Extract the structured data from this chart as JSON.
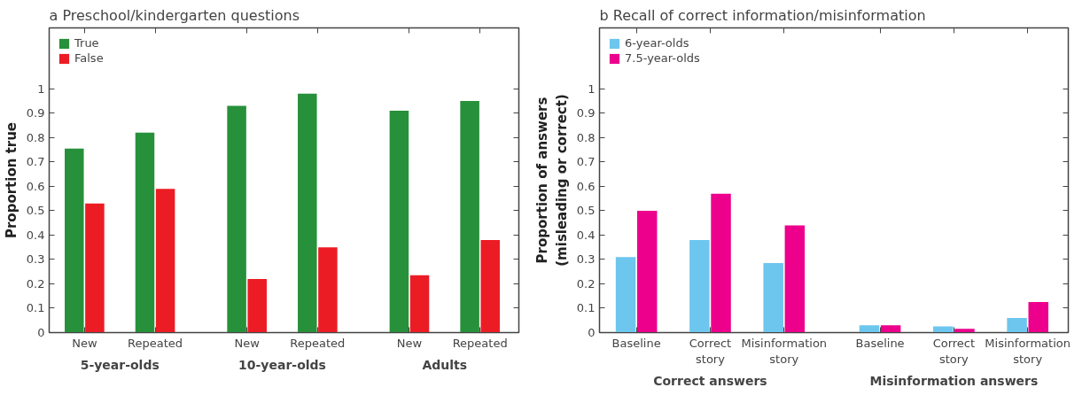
{
  "chart_data": [
    {
      "type": "bar",
      "title": "a Preschool/kindergarten questions",
      "ylabel": "Proportion true",
      "categories": [
        "New",
        "Repeated",
        "New",
        "Repeated",
        "New",
        "Repeated"
      ],
      "annotations": [
        "5-year-olds",
        "10-year-olds",
        "Adults"
      ],
      "series": [
        {
          "name": "True",
          "color": "#27903a",
          "values": [
            0.755,
            0.82,
            0.93,
            0.98,
            0.91,
            0.95
          ]
        },
        {
          "name": "False",
          "color": "#ec1c24",
          "values": [
            0.53,
            0.59,
            0.22,
            0.35,
            0.235,
            0.38
          ]
        }
      ],
      "ylim": [
        0,
        1.25
      ],
      "yticks": [
        0,
        0.1,
        0.2,
        0.3,
        0.4,
        0.5,
        0.6,
        0.7,
        0.8,
        0.9,
        1
      ],
      "legend": "top left"
    },
    {
      "type": "bar",
      "title": "b Recall of correct information/misinformation",
      "ylabel": "Proportion of answers\n(misleading or correct)",
      "categories": [
        "Baseline",
        "Correct story",
        "Misinformation story",
        "Baseline",
        "Correct story",
        "Misinformation story"
      ],
      "annotations": [
        "Correct answers",
        "Misinformation answers"
      ],
      "series": [
        {
          "name": "6-year-olds",
          "color": "#6dc6ee",
          "values": [
            0.31,
            0.38,
            0.285,
            0.03,
            0.025,
            0.06
          ]
        },
        {
          "name": "7.5-year-olds",
          "color": "#ec008c",
          "values": [
            0.5,
            0.57,
            0.44,
            0.03,
            0.015,
            0.125
          ]
        }
      ],
      "ylim": [
        0,
        1.25
      ],
      "yticks": [
        0,
        0.1,
        0.2,
        0.3,
        0.4,
        0.5,
        0.6,
        0.7,
        0.8,
        0.9,
        1
      ],
      "legend": "top left"
    }
  ]
}
